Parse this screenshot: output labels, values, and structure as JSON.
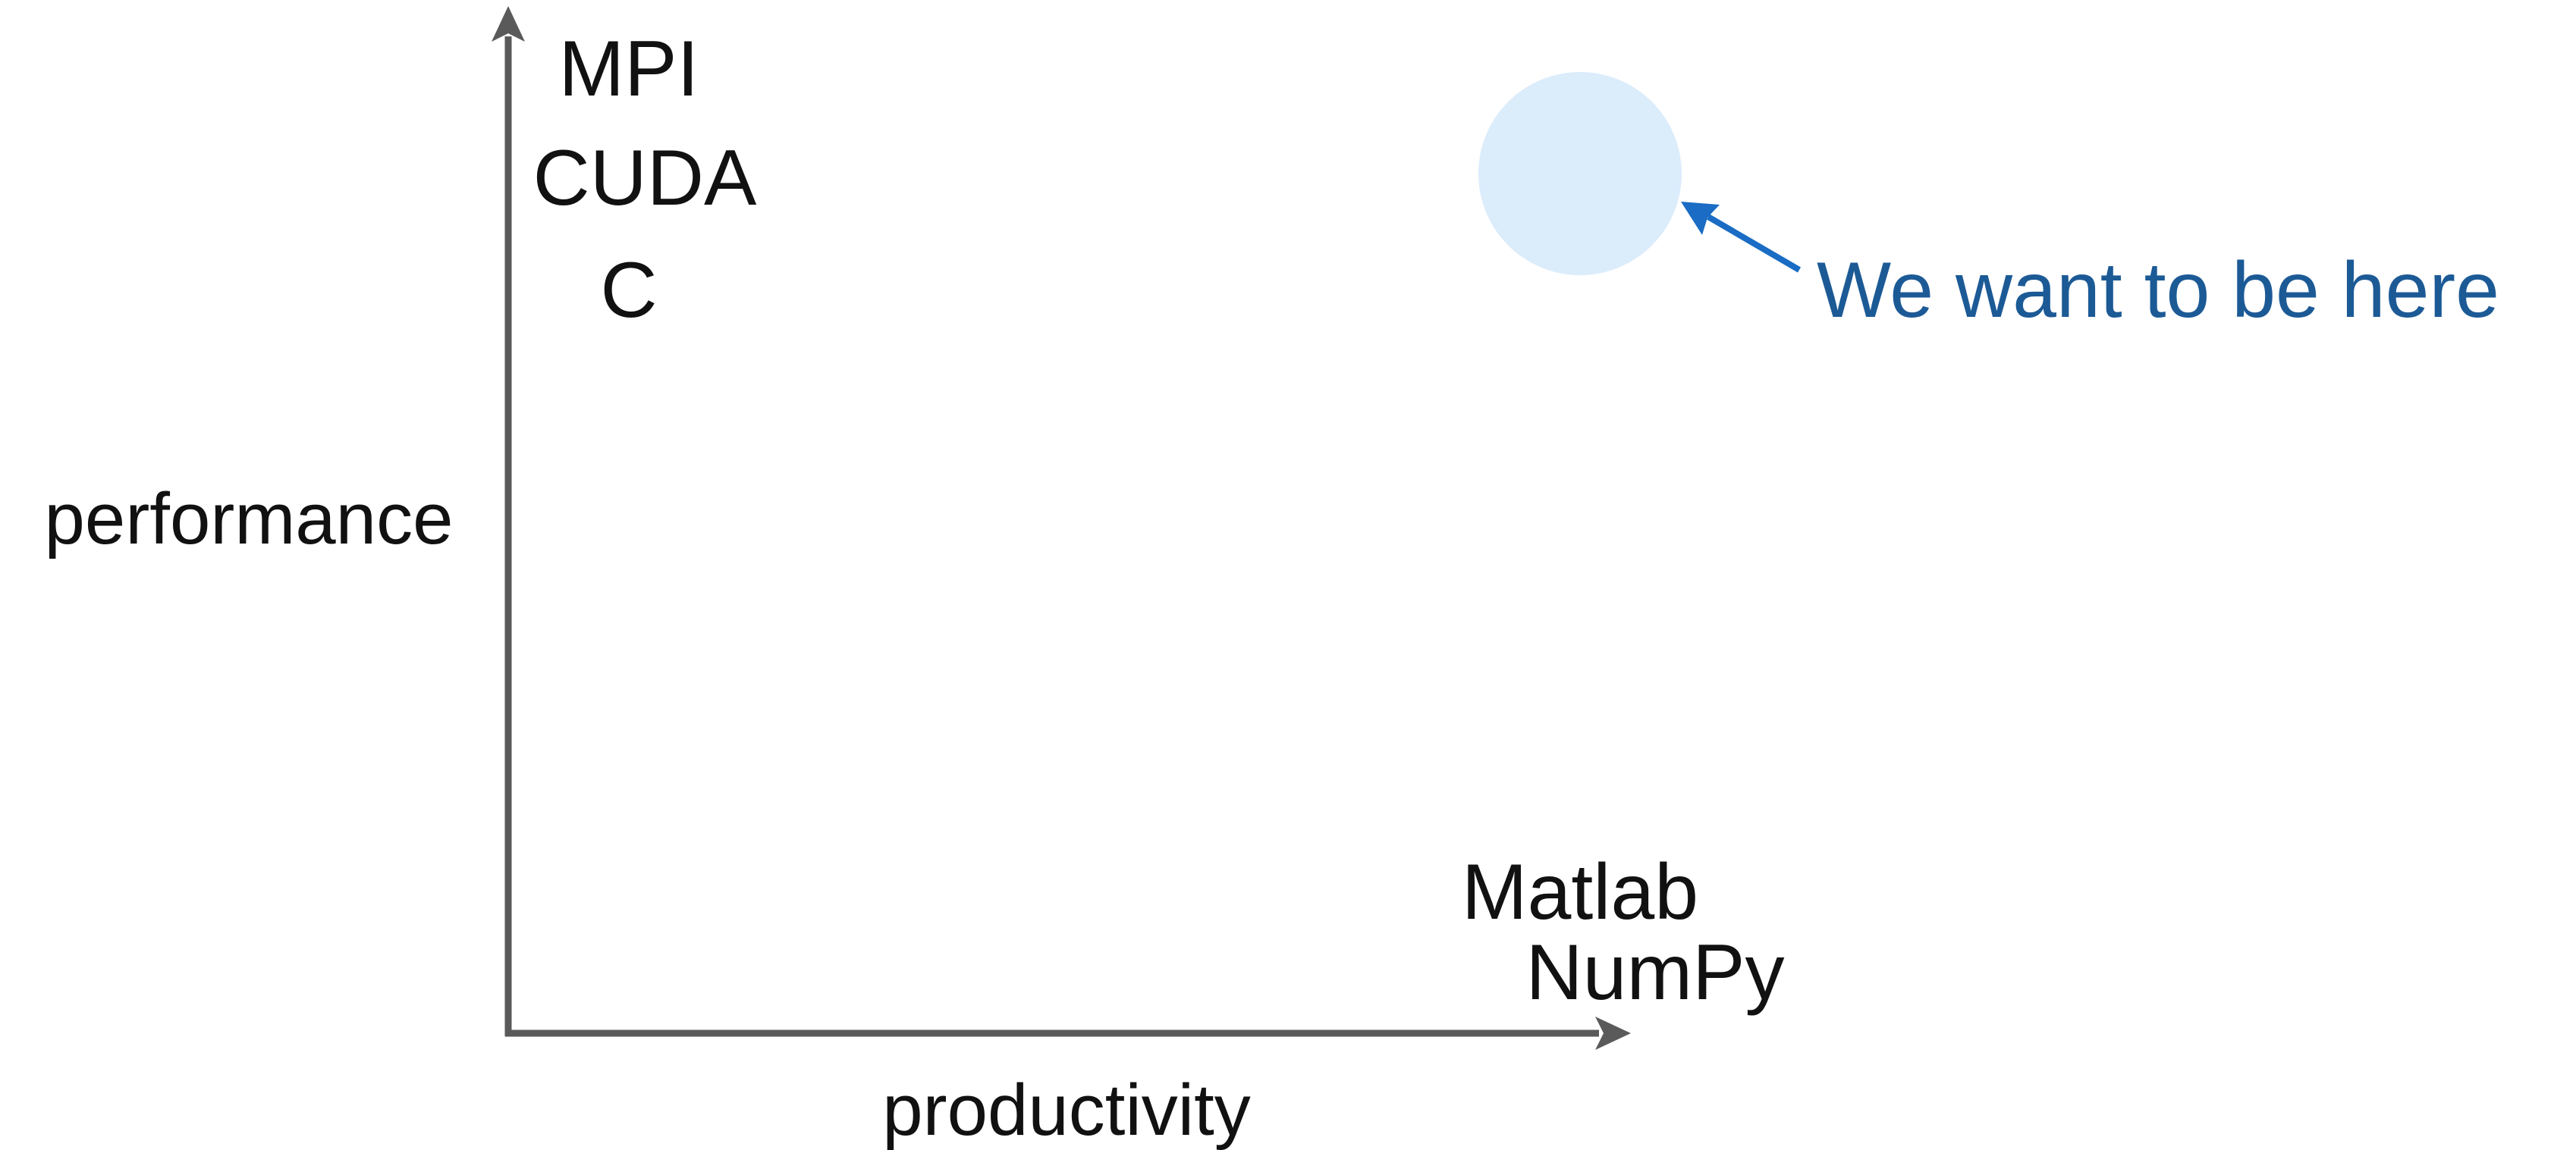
{
  "axes": {
    "y_label": "performance",
    "x_label": "productivity"
  },
  "high_performance_items": [
    "MPI",
    "CUDA",
    "C"
  ],
  "high_productivity_items": [
    "Matlab",
    "NumPy"
  ],
  "target": {
    "annotation": "We want to be here"
  },
  "colors": {
    "axis": "#5a5a5a",
    "text": "#111111",
    "target_fill": "#dbecfb",
    "annotation_text": "#1c5a96",
    "annotation_arrow": "#1a6cc4"
  }
}
